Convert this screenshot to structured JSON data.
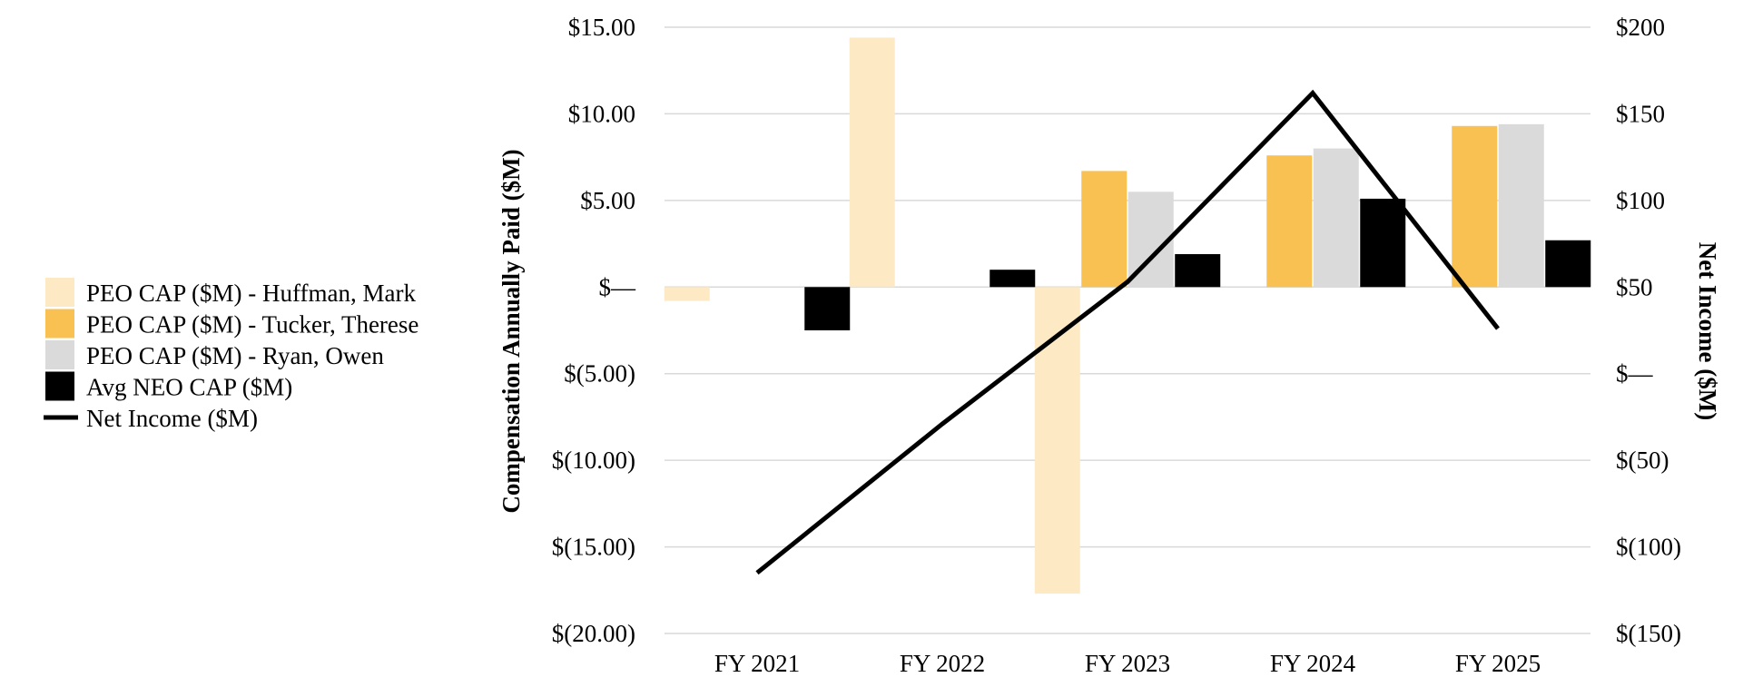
{
  "chart_data": {
    "type": "bar",
    "title": "",
    "categories": [
      "FY 2021",
      "FY 2022",
      "FY 2023",
      "FY 2024",
      "FY 2025"
    ],
    "series": [
      {
        "name": "PEO CAP ($M) - Huffman, Mark",
        "type": "bar",
        "axis": "left",
        "color": "#FDE9C4",
        "values": [
          -0.8,
          14.4,
          -17.7,
          null,
          null
        ]
      },
      {
        "name": "PEO CAP ($M) - Tucker, Therese",
        "type": "bar",
        "axis": "left",
        "color": "#F9C152",
        "values": [
          null,
          null,
          6.7,
          7.6,
          9.3
        ]
      },
      {
        "name": "PEO CAP ($M) - Ryan, Owen",
        "type": "bar",
        "axis": "left",
        "color": "#DADADA",
        "values": [
          null,
          null,
          5.5,
          8.0,
          9.4
        ]
      },
      {
        "name": "Avg NEO CAP ($M)",
        "type": "bar",
        "axis": "left",
        "color": "#000000",
        "values": [
          -2.5,
          1.0,
          1.9,
          5.1,
          2.7
        ]
      },
      {
        "name": "Net Income ($M)",
        "type": "line",
        "axis": "right",
        "color": "#000000",
        "values": [
          -115,
          -29,
          53,
          162,
          26
        ]
      }
    ],
    "y_left": {
      "label": "Compensation Annually Paid ($M)",
      "range": [
        -20,
        15
      ],
      "ticks": [
        15,
        10,
        5,
        0,
        -5,
        -10,
        -15,
        -20
      ],
      "tick_labels": [
        "$15.00",
        "$10.00",
        "$5.00",
        "$—",
        "$(5.00)",
        "$(10.00)",
        "$(15.00)",
        "$(20.00)"
      ]
    },
    "y_right": {
      "label": "Net Income ($M)",
      "range": [
        -150,
        200
      ],
      "ticks": [
        200,
        150,
        100,
        50,
        0,
        -50,
        -100,
        -150
      ],
      "tick_labels": [
        "$200",
        "$150",
        "$100",
        "$50",
        "$—",
        "$(50)",
        "$(100)",
        "$(150)"
      ]
    },
    "grid": true,
    "legend_position": "left"
  }
}
